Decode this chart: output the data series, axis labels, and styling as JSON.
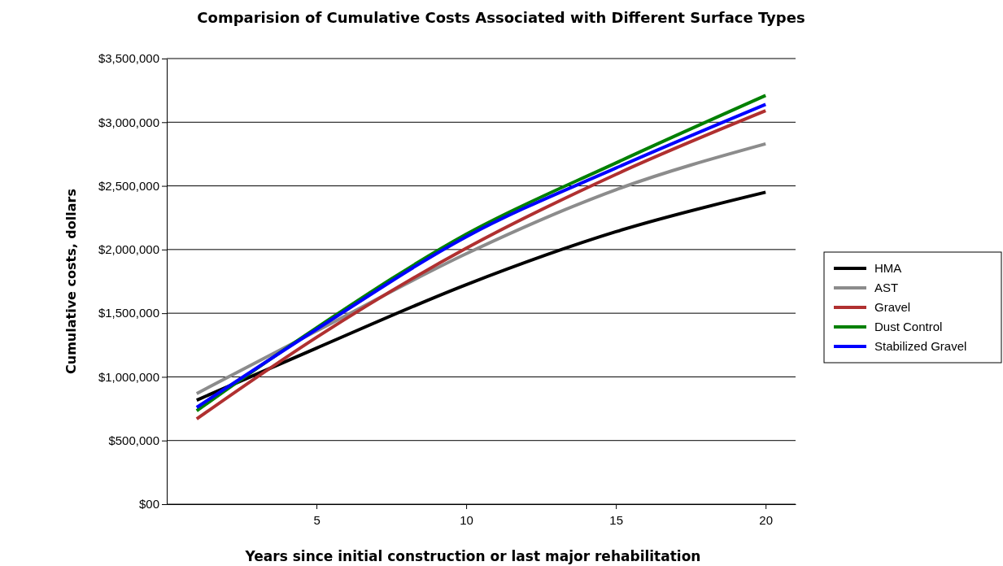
{
  "chart_data": {
    "type": "line",
    "title": "Comparision of Cumulative Costs Associated with Different Surface Types",
    "xlabel": "Years since initial construction or last major rehabilitation",
    "ylabel": "Cumulative costs, dollars",
    "x": [
      1,
      5,
      10,
      15,
      20
    ],
    "series": [
      {
        "name": "HMA",
        "color": "#000000",
        "values": [
          817000,
          1226000,
          1724000,
          2140000,
          2450000
        ]
      },
      {
        "name": "AST",
        "color": "#8c8c8c",
        "values": [
          869000,
          1360000,
          1967000,
          2470000,
          2830000
        ]
      },
      {
        "name": "Gravel",
        "color": "#b03030",
        "values": [
          670000,
          1310000,
          2010000,
          2590000,
          3090000
        ]
      },
      {
        "name": "Dust Control",
        "color": "#008000",
        "values": [
          734000,
          1385000,
          2120000,
          2680000,
          3210000
        ]
      },
      {
        "name": "Stabilized Gravel",
        "color": "#0000ff",
        "values": [
          760000,
          1373000,
          2100000,
          2640000,
          3140000
        ]
      }
    ],
    "xlim": [
      0,
      21
    ],
    "xticks": [
      5,
      10,
      15,
      20
    ],
    "ylim": [
      0,
      3500000
    ],
    "yticks": [
      {
        "value": 0,
        "label": "$00"
      },
      {
        "value": 500000,
        "label": "$500,000"
      },
      {
        "value": 1000000,
        "label": "$1,000,000"
      },
      {
        "value": 1500000,
        "label": "$1,500,000"
      },
      {
        "value": 2000000,
        "label": "$2,000,000"
      },
      {
        "value": 2500000,
        "label": "$2,500,000"
      },
      {
        "value": 3000000,
        "label": "$3,000,000"
      },
      {
        "value": 3500000,
        "label": "$3,500,000"
      }
    ],
    "grid": "y",
    "legend": "right",
    "marker": "none",
    "line_style": "solid"
  }
}
